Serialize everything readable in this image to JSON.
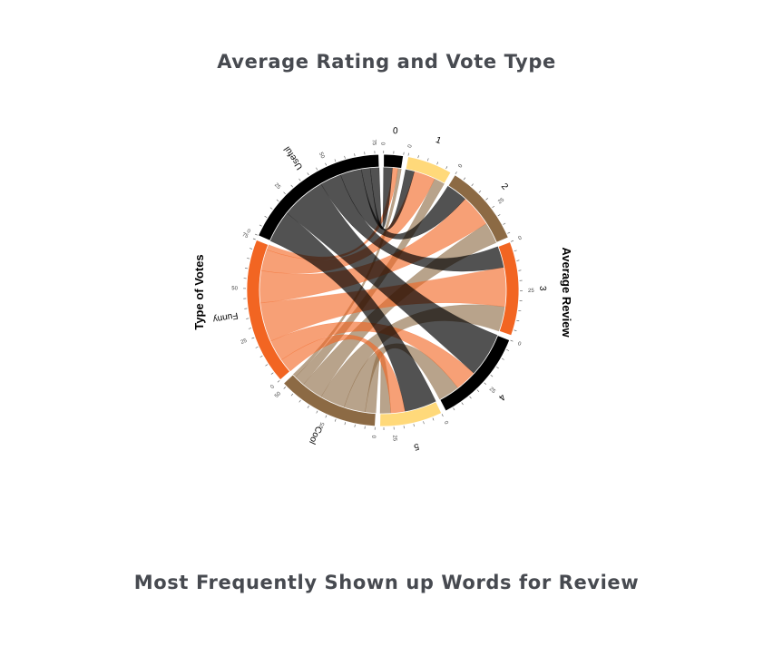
{
  "headings": {
    "chart_title": "Average Rating and Vote Type",
    "section_title": "Most Frequently Shown up Words for Review"
  },
  "chart_data": {
    "type": "chord",
    "title": "Average Rating and Vote Type",
    "left_label": "Type of Votes",
    "right_label": "Average Review",
    "vote_types": [
      "Funny",
      "Useful",
      "Cool"
    ],
    "ratings": [
      "0",
      "1",
      "2",
      "3",
      "4",
      "5"
    ],
    "vote_colors": {
      "Funny": "#f26522",
      "Useful": "#000000",
      "Cool": "#8c6a44"
    },
    "rating_colors": [
      "#000000",
      "#ffd97a",
      "#8c6a44",
      "#f26522",
      "#000000",
      "#ffd97a"
    ],
    "matrix": {
      "Useful": [
        5,
        5,
        12,
        12,
        25,
        18
      ],
      "Funny": [
        3,
        12,
        18,
        22,
        12,
        8
      ],
      "Cool": [
        2,
        6,
        12,
        14,
        12,
        6
      ]
    },
    "tick_step": 25
  }
}
